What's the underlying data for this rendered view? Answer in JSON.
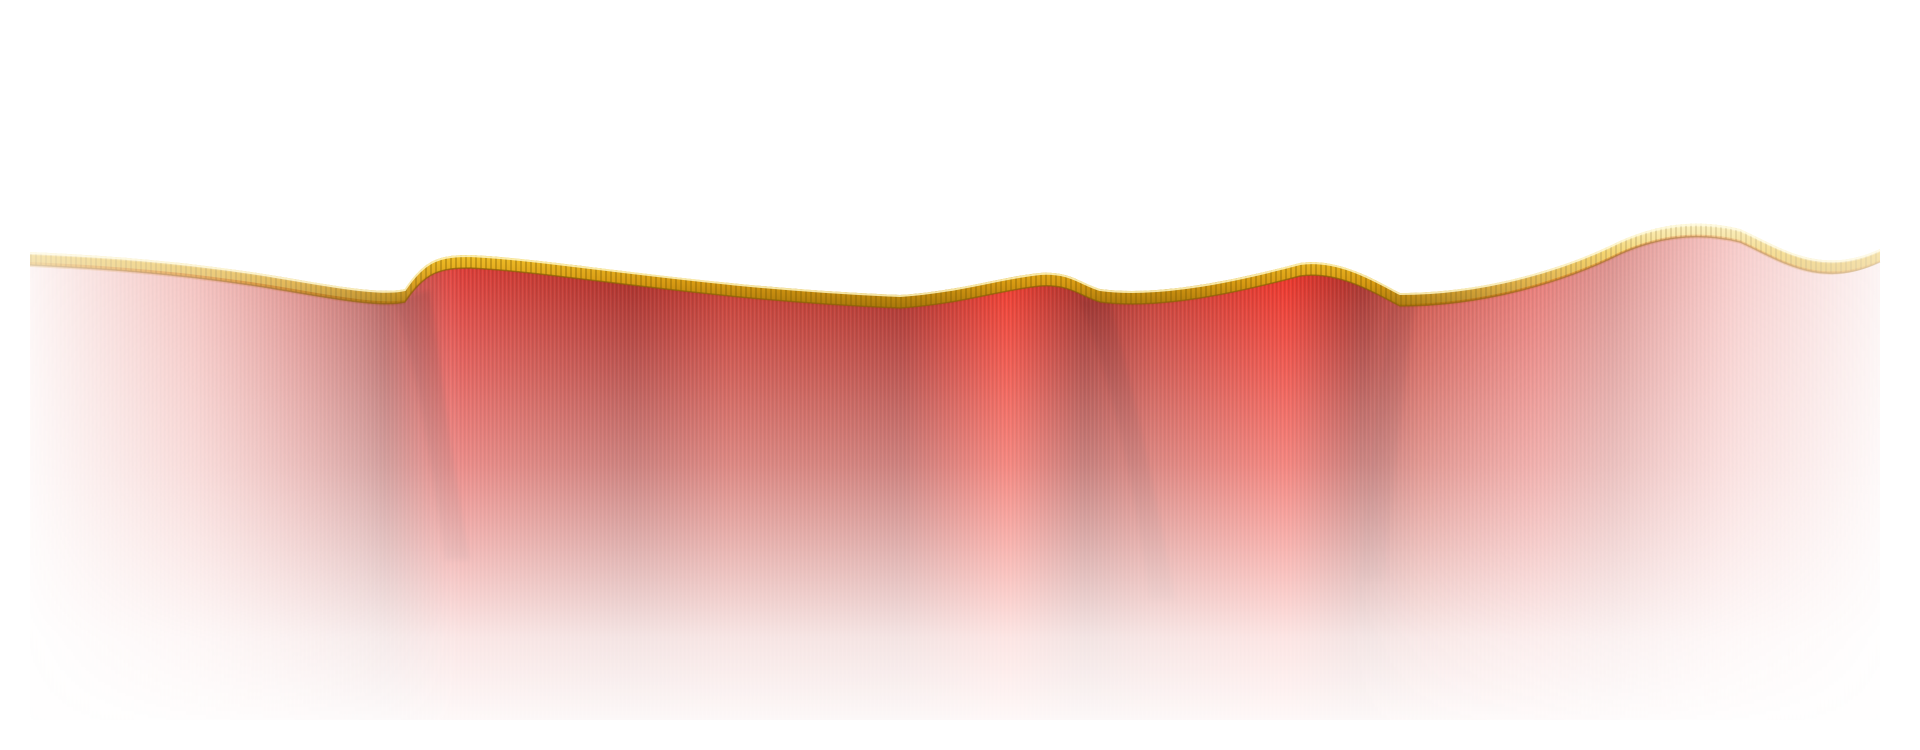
{
  "scene": {
    "subject": "red-velvet-curtain-valance",
    "colors": {
      "background": "#ffffff",
      "velvet_dark": "#a81410",
      "velvet_mid": "#d42a1e",
      "velvet_bright": "#ee2a1c",
      "trim_gold": "#e6b020",
      "trim_highlight": "#fff0a0",
      "trim_shadow": "#b88a10",
      "trim_faded": "#f2e4c0"
    },
    "icons": {
      "curtain": "curtain-icon",
      "trim": "gold-trim-icon"
    }
  }
}
